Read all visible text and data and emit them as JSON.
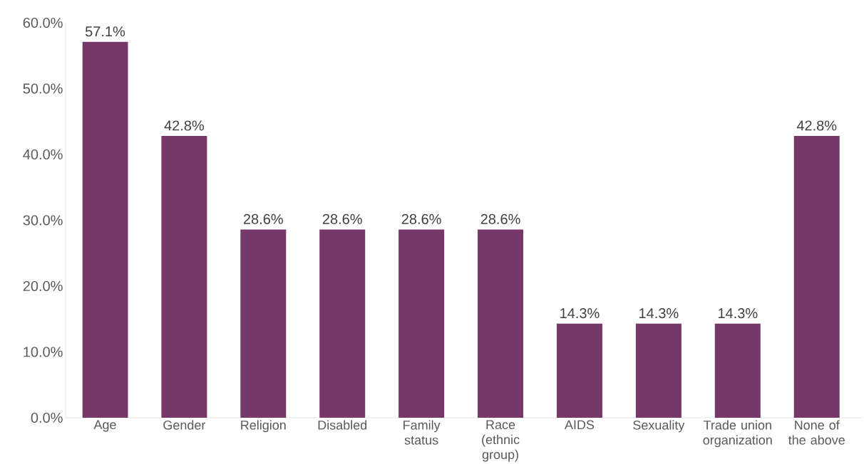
{
  "chart_data": {
    "type": "bar",
    "categories": [
      "Age",
      "Gender",
      "Religion",
      "Disabled",
      "Family status",
      "Race (ethnic group)",
      "AIDS",
      "Sexuality",
      "Trade union organization",
      "None of the above"
    ],
    "values": [
      57.1,
      42.8,
      28.6,
      28.6,
      28.6,
      28.6,
      14.3,
      14.3,
      14.3,
      42.8
    ],
    "value_labels": [
      "57.1%",
      "42.8%",
      "28.6%",
      "28.6%",
      "28.6%",
      "28.6%",
      "14.3%",
      "14.3%",
      "14.3%",
      "42.8%"
    ],
    "color": "#763869",
    "ylim": [
      0,
      60
    ],
    "yticks": [
      {
        "value": 0,
        "label": "0.0%"
      },
      {
        "value": 10,
        "label": "10.0%"
      },
      {
        "value": 20,
        "label": "20.0%"
      },
      {
        "value": 30,
        "label": "30.0%"
      },
      {
        "value": 40,
        "label": "40.0%"
      },
      {
        "value": 50,
        "label": "50.0%"
      },
      {
        "value": 60,
        "label": "60.0%"
      }
    ],
    "grid": false
  }
}
